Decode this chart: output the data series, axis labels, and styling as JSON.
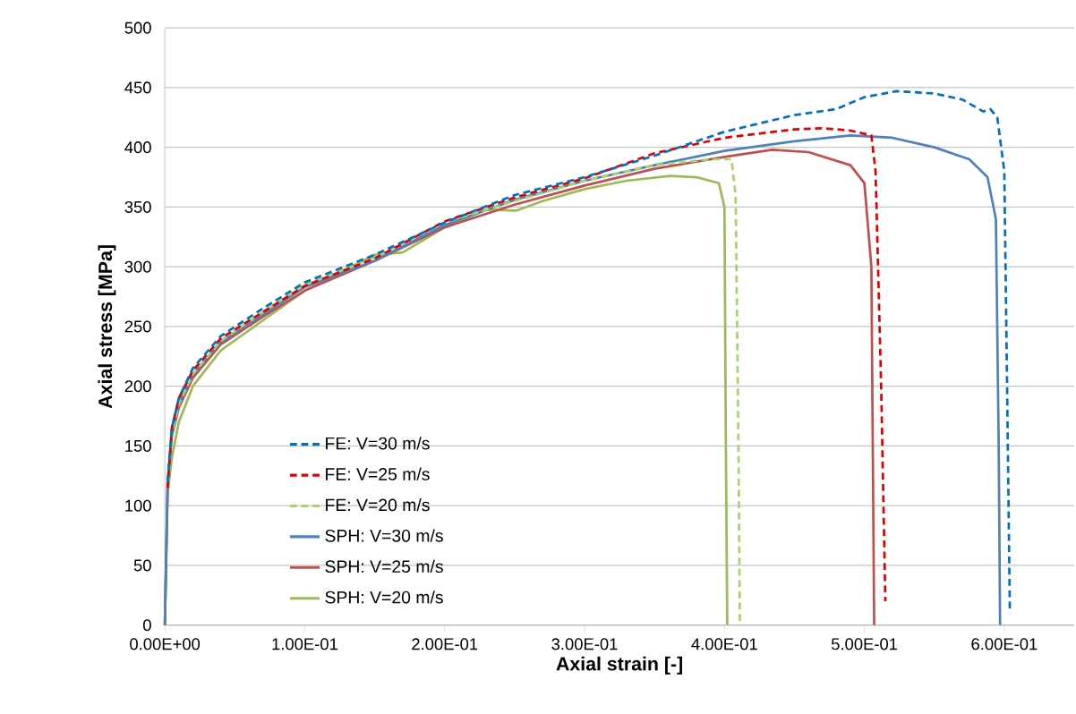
{
  "chart_data": {
    "type": "line",
    "xlabel": "Axial strain [-]",
    "ylabel": "Axial stress [MPa]",
    "xlim": [
      0,
      0.65
    ],
    "ylim": [
      0,
      500
    ],
    "xticks": [
      {
        "value": 0,
        "label": "0.00E+00"
      },
      {
        "value": 0.1,
        "label": "1.00E-01"
      },
      {
        "value": 0.2,
        "label": "2.00E-01"
      },
      {
        "value": 0.3,
        "label": "3.00E-01"
      },
      {
        "value": 0.4,
        "label": "4.00E-01"
      },
      {
        "value": 0.5,
        "label": "5.00E-01"
      },
      {
        "value": 0.6,
        "label": "6.00E-01"
      }
    ],
    "yticks": [
      0,
      50,
      100,
      150,
      200,
      250,
      300,
      350,
      400,
      450,
      500
    ],
    "grid": "y",
    "legend": "bottom left",
    "marker": "none",
    "series": [
      {
        "name": "FE: V=30 m/s",
        "color": "#0070c0",
        "line_style": "dashed",
        "x": [
          0.002,
          0.005,
          0.01,
          0.02,
          0.04,
          0.07,
          0.1,
          0.15,
          0.2,
          0.25,
          0.3,
          0.35,
          0.4,
          0.45,
          0.48,
          0.5,
          0.523,
          0.55,
          0.57,
          0.585,
          0.59,
          0.595,
          0.6,
          0.602,
          0.604
        ],
        "values": [
          120,
          165,
          190,
          215,
          242,
          265,
          287,
          310,
          337,
          360,
          375,
          393,
          413,
          427,
          432,
          442,
          447,
          445,
          440,
          430,
          432,
          425,
          380,
          200,
          10
        ]
      },
      {
        "name": "FE: V=25 m/s",
        "color": "#e00000",
        "line_style": "dashed",
        "x": [
          0.002,
          0.005,
          0.01,
          0.02,
          0.04,
          0.07,
          0.1,
          0.15,
          0.2,
          0.25,
          0.3,
          0.35,
          0.4,
          0.45,
          0.47,
          0.49,
          0.505,
          0.508,
          0.512,
          0.515
        ],
        "values": [
          115,
          165,
          190,
          213,
          240,
          262,
          284,
          307,
          338,
          358,
          374,
          395,
          408,
          415,
          416,
          414,
          410,
          380,
          200,
          20
        ]
      },
      {
        "name": "FE: V=20 m/s",
        "color": "#a6d46a",
        "line_style": "dashed",
        "x": [
          0.002,
          0.005,
          0.01,
          0.02,
          0.04,
          0.07,
          0.1,
          0.15,
          0.2,
          0.25,
          0.3,
          0.35,
          0.39,
          0.405,
          0.408,
          0.41,
          0.411
        ],
        "values": [
          118,
          160,
          185,
          210,
          238,
          262,
          285,
          308,
          337,
          355,
          372,
          385,
          390,
          390,
          360,
          150,
          0
        ]
      },
      {
        "name": "SPH: V=30 m/s",
        "color": "#4f81bd",
        "line_style": "solid",
        "x": [
          0,
          0.002,
          0.005,
          0.01,
          0.02,
          0.04,
          0.07,
          0.1,
          0.15,
          0.2,
          0.25,
          0.3,
          0.35,
          0.4,
          0.45,
          0.49,
          0.52,
          0.55,
          0.575,
          0.588,
          0.594,
          0.596,
          0.597
        ],
        "values": [
          0,
          120,
          160,
          185,
          210,
          237,
          260,
          283,
          305,
          335,
          356,
          372,
          385,
          397,
          405,
          410,
          408,
          400,
          390,
          375,
          340,
          150,
          0
        ]
      },
      {
        "name": "SPH: V=25 m/s",
        "color": "#c0504d",
        "line_style": "solid",
        "x": [
          0,
          0.002,
          0.005,
          0.01,
          0.02,
          0.04,
          0.07,
          0.1,
          0.15,
          0.2,
          0.25,
          0.3,
          0.35,
          0.4,
          0.434,
          0.46,
          0.49,
          0.5,
          0.505,
          0.506,
          0.507
        ],
        "values": [
          0,
          118,
          158,
          182,
          207,
          235,
          258,
          280,
          305,
          333,
          352,
          368,
          382,
          392,
          398,
          396,
          385,
          370,
          300,
          150,
          0
        ]
      },
      {
        "name": "SPH: V=20 m/s",
        "color": "#9bbb59",
        "line_style": "solid",
        "x": [
          0,
          0.002,
          0.005,
          0.01,
          0.02,
          0.04,
          0.07,
          0.1,
          0.13,
          0.15,
          0.17,
          0.2,
          0.23,
          0.251,
          0.27,
          0.3,
          0.33,
          0.361,
          0.38,
          0.396,
          0.4,
          0.401,
          0.402
        ],
        "values": [
          0,
          110,
          140,
          170,
          200,
          230,
          255,
          280,
          298,
          310,
          312,
          333,
          348,
          347,
          355,
          365,
          372,
          376,
          375,
          370,
          350,
          150,
          0
        ]
      }
    ]
  }
}
